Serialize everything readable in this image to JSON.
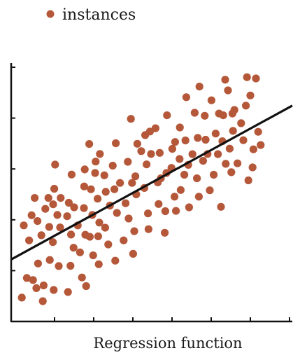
{
  "chart_data": {
    "type": "scatter",
    "title": "",
    "xlabel": "Regression function",
    "ylabel": "",
    "xlim": [
      0,
      1
    ],
    "ylim": [
      0,
      1
    ],
    "grid": false,
    "legend_position": "top-left",
    "marker_color": "#b5583a",
    "line_color": "#111111",
    "series": [
      {
        "name": "instances",
        "points": [
          [
            0.033,
            0.094
          ],
          [
            0.04,
            0.378
          ],
          [
            0.051,
            0.171
          ],
          [
            0.059,
            0.319
          ],
          [
            0.068,
            0.418
          ],
          [
            0.073,
            0.163
          ],
          [
            0.079,
            0.486
          ],
          [
            0.085,
            0.131
          ],
          [
            0.089,
            0.395
          ],
          [
            0.091,
            0.228
          ],
          [
            0.103,
            0.339
          ],
          [
            0.108,
            0.08
          ],
          [
            0.111,
            0.142
          ],
          [
            0.117,
            0.443
          ],
          [
            0.128,
            0.486
          ],
          [
            0.131,
            0.372
          ],
          [
            0.133,
            0.242
          ],
          [
            0.144,
            0.312
          ],
          [
            0.145,
            0.461
          ],
          [
            0.147,
            0.124
          ],
          [
            0.149,
            0.522
          ],
          [
            0.152,
            0.617
          ],
          [
            0.16,
            0.419
          ],
          [
            0.165,
            0.218
          ],
          [
            0.17,
            0.37
          ],
          [
            0.172,
            0.486
          ],
          [
            0.195,
            0.414
          ],
          [
            0.198,
            0.116
          ],
          [
            0.201,
            0.467
          ],
          [
            0.207,
            0.219
          ],
          [
            0.209,
            0.342
          ],
          [
            0.211,
            0.578
          ],
          [
            0.218,
            0.29
          ],
          [
            0.22,
            0.449
          ],
          [
            0.233,
            0.378
          ],
          [
            0.241,
            0.272
          ],
          [
            0.248,
            0.173
          ],
          [
            0.255,
            0.446
          ],
          [
            0.256,
            0.531
          ],
          [
            0.258,
            0.598
          ],
          [
            0.26,
            0.341
          ],
          [
            0.263,
            0.139
          ],
          [
            0.274,
            0.698
          ],
          [
            0.276,
            0.333
          ],
          [
            0.28,
            0.52
          ],
          [
            0.285,
            0.419
          ],
          [
            0.288,
            0.26
          ],
          [
            0.295,
            0.584
          ],
          [
            0.297,
            0.629
          ],
          [
            0.304,
            0.483
          ],
          [
            0.306,
            0.335
          ],
          [
            0.308,
            0.225
          ],
          [
            0.31,
            0.389
          ],
          [
            0.312,
            0.659
          ],
          [
            0.328,
            0.575
          ],
          [
            0.331,
            0.369
          ],
          [
            0.333,
            0.51
          ],
          [
            0.342,
            0.303
          ],
          [
            0.348,
            0.456
          ],
          [
            0.358,
            0.613
          ],
          [
            0.364,
            0.52
          ],
          [
            0.367,
            0.239
          ],
          [
            0.369,
            0.701
          ],
          [
            0.373,
            0.427
          ],
          [
            0.384,
            0.545
          ],
          [
            0.397,
            0.319
          ],
          [
            0.404,
            0.465
          ],
          [
            0.412,
            0.628
          ],
          [
            0.415,
            0.405
          ],
          [
            0.423,
            0.797
          ],
          [
            0.427,
            0.545
          ],
          [
            0.431,
            0.266
          ],
          [
            0.435,
            0.355
          ],
          [
            0.439,
            0.571
          ],
          [
            0.442,
            0.5
          ],
          [
            0.446,
            0.699
          ],
          [
            0.46,
            0.67
          ],
          [
            0.471,
            0.525
          ],
          [
            0.474,
            0.733
          ],
          [
            0.479,
            0.618
          ],
          [
            0.484,
            0.425
          ],
          [
            0.486,
            0.363
          ],
          [
            0.491,
            0.747
          ],
          [
            0.495,
            0.659
          ],
          [
            0.511,
            0.76
          ],
          [
            0.519,
            0.547
          ],
          [
            0.522,
            0.462
          ],
          [
            0.526,
            0.663
          ],
          [
            0.53,
            0.563
          ],
          [
            0.544,
            0.349
          ],
          [
            0.546,
            0.434
          ],
          [
            0.55,
            0.584
          ],
          [
            0.552,
            0.811
          ],
          [
            0.568,
            0.604
          ],
          [
            0.571,
            0.679
          ],
          [
            0.579,
            0.491
          ],
          [
            0.581,
            0.706
          ],
          [
            0.584,
            0.435
          ],
          [
            0.597,
            0.639
          ],
          [
            0.598,
            0.763
          ],
          [
            0.601,
            0.517
          ],
          [
            0.614,
            0.577
          ],
          [
            0.618,
            0.712
          ],
          [
            0.621,
            0.882
          ],
          [
            0.628,
            0.616
          ],
          [
            0.631,
            0.449
          ],
          [
            0.643,
            0.658
          ],
          [
            0.651,
            0.821
          ],
          [
            0.659,
            0.563
          ],
          [
            0.662,
            0.722
          ],
          [
            0.666,
            0.491
          ],
          [
            0.668,
            0.924
          ],
          [
            0.681,
            0.632
          ],
          [
            0.687,
            0.809
          ],
          [
            0.69,
            0.715
          ],
          [
            0.697,
            0.659
          ],
          [
            0.705,
            0.516
          ],
          [
            0.711,
            0.87
          ],
          [
            0.719,
            0.577
          ],
          [
            0.726,
            0.739
          ],
          [
            0.734,
            0.658
          ],
          [
            0.738,
            0.818
          ],
          [
            0.745,
            0.451
          ],
          [
            0.75,
            0.709
          ],
          [
            0.753,
            0.811
          ],
          [
            0.76,
            0.951
          ],
          [
            0.762,
            0.62
          ],
          [
            0.77,
            0.909
          ],
          [
            0.776,
            0.68
          ],
          [
            0.782,
            0.587
          ],
          [
            0.786,
            0.818
          ],
          [
            0.788,
            0.75
          ],
          [
            0.793,
            0.832
          ],
          [
            0.804,
            0.622
          ],
          [
            0.817,
            0.78
          ],
          [
            0.825,
            0.713
          ],
          [
            0.834,
            0.849
          ],
          [
            0.838,
            0.961
          ],
          [
            0.843,
            0.555
          ],
          [
            0.85,
            0.889
          ],
          [
            0.858,
            0.606
          ],
          [
            0.861,
            0.677
          ],
          [
            0.87,
            0.956
          ],
          [
            0.878,
            0.746
          ],
          [
            0.887,
            0.694
          ]
        ]
      }
    ],
    "trend_line": {
      "x": [
        0,
        1
      ],
      "y": [
        0.244,
        0.849
      ]
    }
  }
}
